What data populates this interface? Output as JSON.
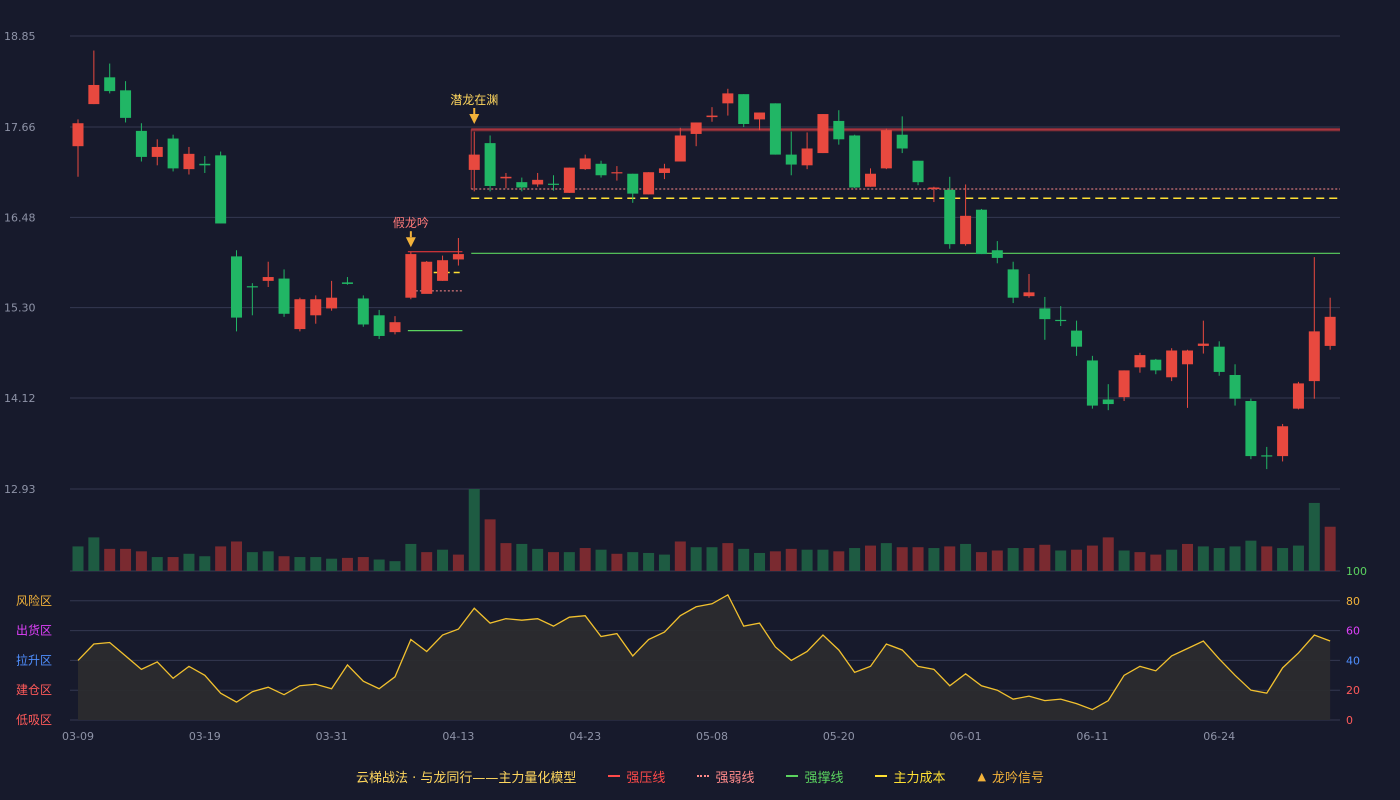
{
  "chart_data": {
    "type": "candlestick",
    "x_tick_labels": [
      "03-09",
      "03-19",
      "03-31",
      "04-13",
      "04-23",
      "05-08",
      "05-20",
      "06-01",
      "06-11",
      "06-24"
    ],
    "y_ticks": [
      12.93,
      14.12,
      15.3,
      16.48,
      17.66,
      18.85
    ],
    "y_tick_labels": [
      "12.93",
      "14.12",
      "15.30",
      "16.48",
      "17.66",
      "18.85"
    ],
    "ylim": [
      12.93,
      18.85
    ],
    "osc_ylim": [
      0,
      100
    ],
    "osc_ticks": [
      0,
      20,
      40,
      60,
      80,
      100
    ],
    "osc_tick_labels": [
      "0",
      "20",
      "40",
      "60",
      "80",
      "100"
    ],
    "zones": [
      {
        "label": "风险区",
        "color": "#f2b23a"
      },
      {
        "label": "出货区",
        "color": "#e040fb"
      },
      {
        "label": "拉升区",
        "color": "#4f8fff"
      },
      {
        "label": "建仓区",
        "color": "#ff5a5a"
      },
      {
        "label": "低吸区",
        "color": "#ff5a5a"
      }
    ],
    "candles": [
      [
        17.41,
        17.71,
        17.01,
        17.76
      ],
      [
        17.96,
        18.21,
        17.96,
        18.66
      ],
      [
        18.31,
        18.13,
        18.1,
        18.49
      ],
      [
        18.14,
        17.78,
        17.72,
        18.26
      ],
      [
        17.61,
        17.27,
        17.21,
        17.71
      ],
      [
        17.27,
        17.4,
        17.16,
        17.5
      ],
      [
        17.51,
        17.12,
        17.08,
        17.56
      ],
      [
        17.11,
        17.31,
        17.04,
        17.4
      ],
      [
        17.18,
        17.16,
        17.06,
        17.28
      ],
      [
        17.29,
        16.4,
        16.4,
        17.34
      ],
      [
        15.97,
        15.17,
        14.99,
        16.05
      ],
      [
        15.58,
        15.57,
        15.2,
        15.62
      ],
      [
        15.65,
        15.7,
        15.57,
        15.9
      ],
      [
        15.68,
        15.22,
        15.18,
        15.8
      ],
      [
        15.02,
        15.41,
        14.99,
        15.43
      ],
      [
        15.2,
        15.41,
        15.09,
        15.46
      ],
      [
        15.29,
        15.43,
        15.26,
        15.65
      ],
      [
        15.63,
        15.61,
        15.6,
        15.7
      ],
      [
        15.42,
        15.08,
        15.05,
        15.46
      ],
      [
        15.2,
        14.93,
        14.89,
        15.27
      ],
      [
        14.98,
        15.11,
        14.95,
        15.19
      ],
      [
        15.43,
        16.0,
        15.41,
        16.03
      ],
      [
        15.48,
        15.9,
        15.49,
        15.91
      ],
      [
        15.65,
        15.92,
        15.65,
        15.98
      ],
      [
        15.93,
        16.0,
        15.85,
        16.21
      ],
      [
        17.1,
        17.3,
        16.82,
        17.6
      ],
      [
        17.45,
        16.89,
        16.82,
        17.55
      ],
      [
        16.99,
        17.01,
        16.86,
        17.06
      ],
      [
        16.94,
        16.87,
        16.82,
        17.0
      ],
      [
        16.91,
        16.97,
        16.88,
        17.06
      ],
      [
        16.92,
        16.91,
        16.83,
        17.03
      ],
      [
        16.8,
        17.13,
        16.8,
        17.13
      ],
      [
        17.11,
        17.25,
        17.1,
        17.3
      ],
      [
        17.18,
        17.03,
        17.0,
        17.22
      ],
      [
        17.06,
        17.07,
        16.96,
        17.15
      ],
      [
        17.05,
        16.79,
        16.67,
        17.05
      ],
      [
        16.78,
        17.07,
        16.78,
        17.07
      ],
      [
        17.06,
        17.12,
        16.98,
        17.18
      ],
      [
        17.21,
        17.55,
        17.21,
        17.65
      ],
      [
        17.57,
        17.72,
        17.41,
        17.72
      ],
      [
        17.79,
        17.81,
        17.73,
        17.92
      ],
      [
        17.97,
        18.1,
        17.81,
        18.16
      ],
      [
        18.09,
        17.7,
        17.66,
        18.09
      ],
      [
        17.76,
        17.85,
        17.62,
        17.85
      ],
      [
        17.97,
        17.3,
        17.3,
        17.97
      ],
      [
        17.3,
        17.17,
        17.03,
        17.6
      ],
      [
        17.16,
        17.38,
        17.11,
        17.59
      ],
      [
        17.32,
        17.83,
        17.32,
        17.83
      ],
      [
        17.74,
        17.5,
        17.43,
        17.88
      ],
      [
        17.55,
        16.87,
        16.86,
        17.56
      ],
      [
        16.88,
        17.05,
        16.88,
        17.12
      ],
      [
        17.12,
        17.62,
        17.11,
        17.64
      ],
      [
        17.56,
        17.38,
        17.32,
        17.8
      ],
      [
        17.22,
        16.94,
        16.9,
        17.22
      ],
      [
        16.85,
        16.87,
        16.68,
        16.88
      ],
      [
        16.84,
        16.13,
        16.07,
        17.01
      ],
      [
        16.13,
        16.5,
        16.11,
        16.91
      ],
      [
        16.58,
        16.0,
        16.0,
        16.59
      ],
      [
        16.05,
        15.95,
        15.88,
        16.17
      ],
      [
        15.8,
        15.43,
        15.36,
        15.9
      ],
      [
        15.45,
        15.5,
        15.43,
        15.74
      ],
      [
        15.29,
        15.15,
        14.88,
        15.44
      ],
      [
        15.14,
        15.13,
        15.06,
        15.32
      ],
      [
        15.0,
        14.79,
        14.67,
        15.13
      ],
      [
        14.61,
        14.02,
        13.98,
        14.67
      ],
      [
        14.1,
        14.04,
        13.96,
        14.3
      ],
      [
        14.13,
        14.48,
        14.08,
        14.48
      ],
      [
        14.52,
        14.68,
        14.45,
        14.71
      ],
      [
        14.62,
        14.48,
        14.43,
        14.63
      ],
      [
        14.39,
        14.74,
        14.34,
        14.77
      ],
      [
        14.56,
        14.74,
        13.99,
        14.75
      ],
      [
        14.8,
        14.83,
        14.7,
        15.13
      ],
      [
        14.79,
        14.46,
        14.41,
        14.86
      ],
      [
        14.42,
        14.11,
        14.02,
        14.56
      ],
      [
        14.08,
        13.36,
        13.32,
        14.11
      ],
      [
        13.37,
        13.36,
        13.19,
        13.48
      ],
      [
        13.36,
        13.75,
        13.29,
        13.78
      ],
      [
        13.98,
        14.31,
        13.97,
        14.33
      ],
      [
        14.34,
        14.99,
        14.11,
        15.96
      ],
      [
        14.8,
        15.18,
        14.75,
        15.43
      ]
    ],
    "volumes": [
      [
        0.3,
        "down"
      ],
      [
        0.41,
        "down"
      ],
      [
        0.27,
        "up"
      ],
      [
        0.27,
        "up"
      ],
      [
        0.24,
        "up"
      ],
      [
        0.17,
        "down"
      ],
      [
        0.17,
        "up"
      ],
      [
        0.21,
        "down"
      ],
      [
        0.18,
        "down"
      ],
      [
        0.3,
        "up"
      ],
      [
        0.36,
        "up"
      ],
      [
        0.23,
        "down"
      ],
      [
        0.24,
        "down"
      ],
      [
        0.18,
        "up"
      ],
      [
        0.17,
        "down"
      ],
      [
        0.17,
        "down"
      ],
      [
        0.15,
        "down"
      ],
      [
        0.16,
        "up"
      ],
      [
        0.17,
        "up"
      ],
      [
        0.14,
        "down"
      ],
      [
        0.12,
        "down"
      ],
      [
        0.33,
        "down"
      ],
      [
        0.23,
        "up"
      ],
      [
        0.26,
        "down"
      ],
      [
        0.2,
        "up"
      ],
      [
        1.0,
        "down"
      ],
      [
        0.63,
        "up"
      ],
      [
        0.34,
        "up"
      ],
      [
        0.33,
        "down"
      ],
      [
        0.27,
        "down"
      ],
      [
        0.23,
        "up"
      ],
      [
        0.23,
        "down"
      ],
      [
        0.28,
        "up"
      ],
      [
        0.26,
        "down"
      ],
      [
        0.21,
        "up"
      ],
      [
        0.23,
        "down"
      ],
      [
        0.22,
        "down"
      ],
      [
        0.2,
        "down"
      ],
      [
        0.36,
        "up"
      ],
      [
        0.29,
        "down"
      ],
      [
        0.29,
        "down"
      ],
      [
        0.34,
        "up"
      ],
      [
        0.27,
        "down"
      ],
      [
        0.22,
        "down"
      ],
      [
        0.24,
        "up"
      ],
      [
        0.27,
        "up"
      ],
      [
        0.26,
        "down"
      ],
      [
        0.26,
        "down"
      ],
      [
        0.24,
        "up"
      ],
      [
        0.28,
        "down"
      ],
      [
        0.31,
        "up"
      ],
      [
        0.34,
        "down"
      ],
      [
        0.29,
        "up"
      ],
      [
        0.29,
        "up"
      ],
      [
        0.28,
        "down"
      ],
      [
        0.3,
        "up"
      ],
      [
        0.33,
        "down"
      ],
      [
        0.23,
        "up"
      ],
      [
        0.25,
        "up"
      ],
      [
        0.28,
        "down"
      ],
      [
        0.28,
        "up"
      ],
      [
        0.32,
        "up"
      ],
      [
        0.25,
        "down"
      ],
      [
        0.26,
        "up"
      ],
      [
        0.31,
        "up"
      ],
      [
        0.41,
        "up"
      ],
      [
        0.25,
        "down"
      ],
      [
        0.23,
        "up"
      ],
      [
        0.2,
        "up"
      ],
      [
        0.26,
        "down"
      ],
      [
        0.33,
        "up"
      ],
      [
        0.3,
        "down"
      ],
      [
        0.28,
        "down"
      ],
      [
        0.3,
        "down"
      ],
      [
        0.37,
        "down"
      ],
      [
        0.3,
        "up"
      ],
      [
        0.28,
        "down"
      ],
      [
        0.31,
        "down"
      ],
      [
        0.83,
        "down"
      ],
      [
        0.54,
        "up"
      ]
    ],
    "osc_values": [
      40,
      51,
      52,
      43,
      34,
      39,
      28,
      36,
      30,
      18,
      12,
      19,
      22,
      17,
      23,
      24,
      21,
      37,
      26,
      21,
      29,
      54,
      46,
      57,
      61,
      75,
      65,
      68,
      67,
      68,
      63,
      69,
      70,
      56,
      58,
      43,
      54,
      59,
      70,
      76,
      78,
      84,
      63,
      65,
      49,
      40,
      46,
      57,
      47,
      32,
      36,
      51,
      47,
      36,
      34,
      23,
      31,
      23,
      20,
      14,
      16,
      13,
      14,
      11,
      7,
      13,
      30,
      36,
      33,
      43,
      48,
      53,
      41,
      30,
      20,
      18,
      35,
      45,
      57,
      53
    ],
    "lines": {
      "strong_pressure": {
        "from": 25,
        "to": 79,
        "y": 17.63
      },
      "weak_line": {
        "from": 25,
        "to": 79,
        "y": 16.85
      },
      "main_cost": {
        "from": 25,
        "to": 79,
        "y": 16.73
      },
      "support": {
        "from": 25,
        "to": 79,
        "y": 16.01
      },
      "fake_pressure": {
        "from": 21,
        "to": 24,
        "y": 16.03
      },
      "fake_weak": {
        "from": 21,
        "to": 24,
        "y": 15.52
      },
      "fake_cost": {
        "from": 22,
        "to": 24,
        "y": 15.76
      },
      "fake_support": {
        "from": 21,
        "to": 24,
        "y": 15.0
      }
    },
    "signals": [
      {
        "index": 21,
        "label": "假龙吟",
        "color": "#ff7a7a",
        "y": 16.09
      },
      {
        "index": 25,
        "label": "潜龙在渊",
        "color": "#ffd75e",
        "y": 17.7
      }
    ],
    "colors": {
      "up": "#e8493f",
      "down": "#21b665",
      "vol_up": "#7a2a30",
      "vol_down": "#1e5b42",
      "strong_pressure": "#ff3b3b",
      "weak_line": "#ff8a8a",
      "support": "#5bd35f",
      "main_cost": "#ffe033",
      "signal": "#f2b23a",
      "osc_line": "#f2c12e",
      "osc_fill": "#2b2b2e",
      "grid": "#343850",
      "axis_text": "#8e93a7"
    }
  },
  "legend": {
    "title": "云梯战法 · 与龙同行——主力量化模型",
    "items": [
      {
        "label": "强压线",
        "style": "solid",
        "color": "#ff4a4a"
      },
      {
        "label": "强弱线",
        "style": "dotted",
        "color": "#ff8a8a"
      },
      {
        "label": "强撑线",
        "style": "solid",
        "color": "#5bd35f"
      },
      {
        "label": "主力成本",
        "style": "dashed",
        "color": "#ffe033"
      },
      {
        "label": "龙吟信号",
        "style": "triangle",
        "color": "#f2b23a"
      }
    ]
  }
}
